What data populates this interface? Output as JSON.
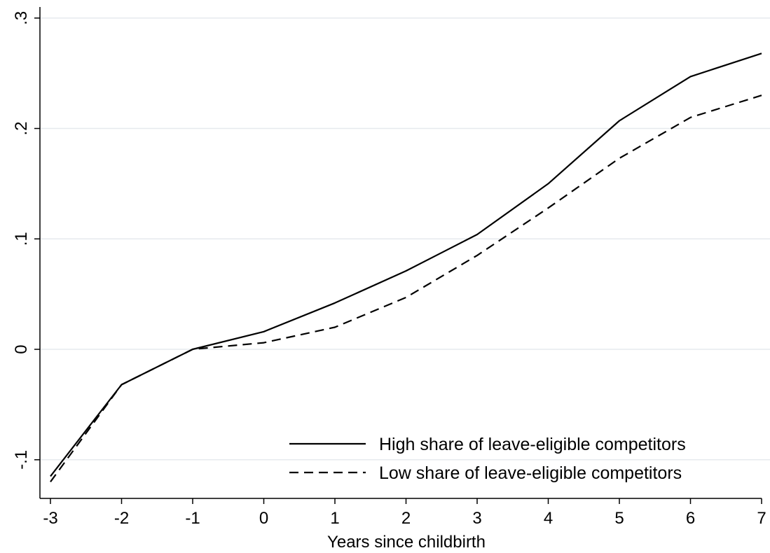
{
  "chart_data": {
    "type": "line",
    "title": "",
    "xlabel": "Years since childbirth",
    "ylabel": "",
    "x": [
      -3,
      -2,
      -1,
      0,
      1,
      2,
      3,
      4,
      5,
      6,
      7
    ],
    "xticks": [
      "-3",
      "-2",
      "-1",
      "0",
      "1",
      "2",
      "3",
      "4",
      "5",
      "6",
      "7"
    ],
    "yticks": [
      -0.1,
      0,
      0.1,
      0.2,
      0.3
    ],
    "ytick_labels": [
      "-.1",
      "0",
      ".1",
      ".2",
      ".3"
    ],
    "xlim": [
      -3,
      7
    ],
    "ylim": [
      -0.135,
      0.31
    ],
    "grid": "horizontal",
    "legend_position": "bottom-right",
    "series": [
      {
        "name": "High share of leave-eligible competitors",
        "style": "solid",
        "color": "#000000",
        "values": [
          -0.115,
          -0.032,
          0.0,
          0.016,
          0.042,
          0.071,
          0.104,
          0.15,
          0.207,
          0.247,
          0.268
        ]
      },
      {
        "name": "Low share of leave-eligible competitors",
        "style": "dashed",
        "color": "#000000",
        "values": [
          -0.12,
          -0.032,
          0.0,
          0.006,
          0.02,
          0.047,
          0.085,
          0.128,
          0.173,
          0.21,
          0.23
        ]
      }
    ]
  }
}
